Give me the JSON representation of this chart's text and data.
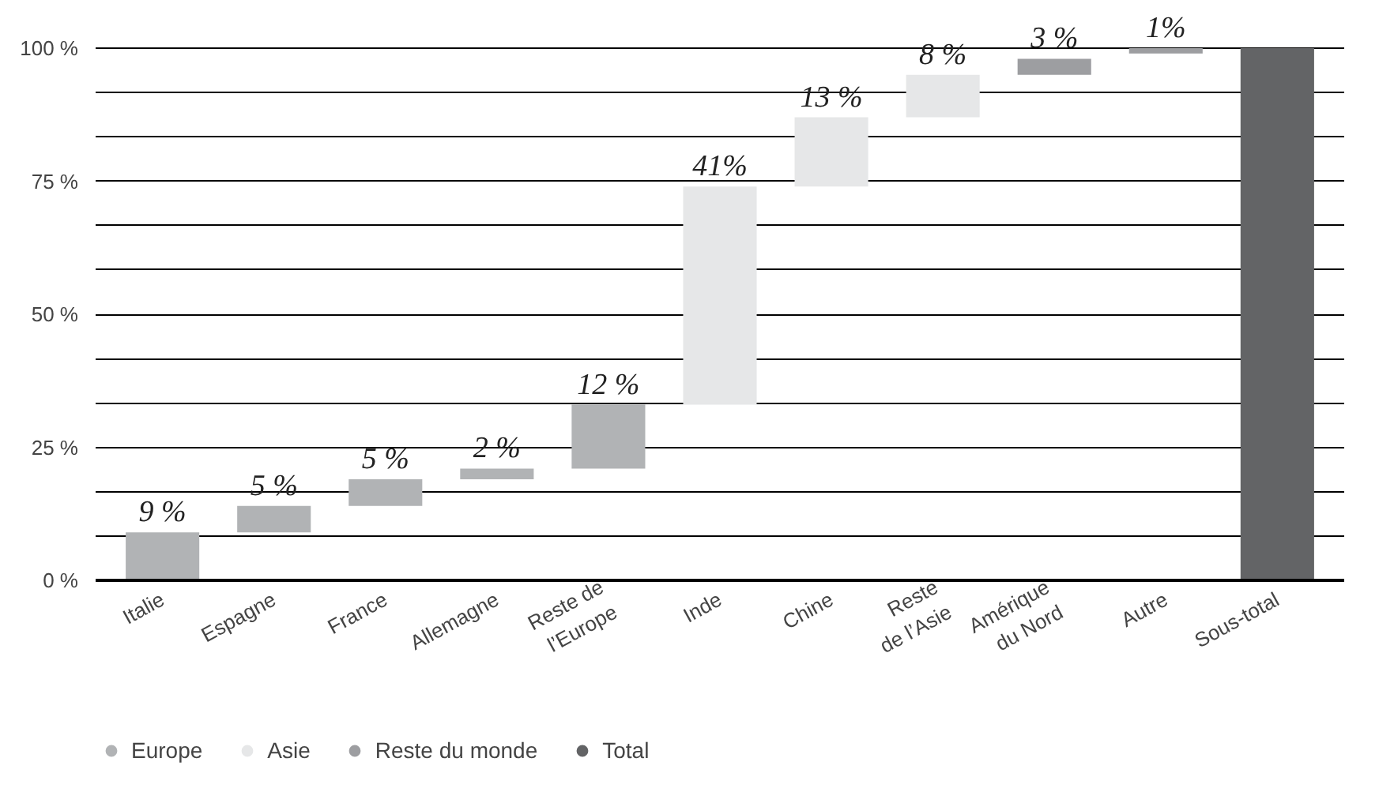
{
  "chart_data": {
    "type": "bar",
    "categories": [
      "Italie",
      "Espagne",
      "France",
      "Allemagne",
      "Reste de\nl’Europe",
      "Inde",
      "Chine",
      "Reste\nde l’Asie",
      "Amérique\ndu Nord",
      "Autre",
      "Sous-total"
    ],
    "series": [
      {
        "name": "Europe",
        "color": "#b1b3b5",
        "values": [
          9,
          5,
          5,
          2,
          12,
          null,
          null,
          null,
          null,
          null,
          null
        ],
        "base": [
          0,
          9,
          14,
          19,
          21,
          null,
          null,
          null,
          null,
          null,
          null
        ]
      },
      {
        "name": "Asie",
        "color": "#e6e7e8",
        "values": [
          null,
          null,
          null,
          null,
          null,
          41,
          13,
          8,
          null,
          null,
          null
        ],
        "base": [
          null,
          null,
          null,
          null,
          null,
          33,
          74,
          87,
          null,
          null,
          null
        ]
      },
      {
        "name": "Reste du monde",
        "color": "#9d9ea1",
        "values": [
          null,
          null,
          null,
          null,
          null,
          null,
          null,
          null,
          3,
          1,
          null
        ],
        "base": [
          null,
          null,
          null,
          null,
          null,
          null,
          null,
          null,
          95,
          99,
          null
        ]
      },
      {
        "name": "Total",
        "color": "#636466",
        "values": [
          null,
          null,
          null,
          null,
          null,
          null,
          null,
          null,
          null,
          null,
          100
        ],
        "base": [
          null,
          null,
          null,
          null,
          null,
          null,
          null,
          null,
          null,
          null,
          0
        ]
      }
    ],
    "value_labels": [
      "9 %",
      "5 %",
      "5 %",
      "2 %",
      "12 %",
      "41%",
      "13 %",
      "8 %",
      "3 %",
      "1%",
      null
    ],
    "ylim": [
      0,
      100
    ],
    "yticks": [
      {
        "value": 0,
        "label": "0 %"
      },
      {
        "value": 8.333,
        "label": null
      },
      {
        "value": 16.667,
        "label": null
      },
      {
        "value": 25,
        "label": "25 %"
      },
      {
        "value": 33.333,
        "label": null
      },
      {
        "value": 41.667,
        "label": null
      },
      {
        "value": 50,
        "label": "50 %"
      },
      {
        "value": 58.333,
        "label": null
      },
      {
        "value": 66.667,
        "label": null
      },
      {
        "value": 75,
        "label": "75 %"
      },
      {
        "value": 83.333,
        "label": null
      },
      {
        "value": 91.667,
        "label": null
      },
      {
        "value": 100,
        "label": "100 %"
      }
    ],
    "grid": "y",
    "legend": "bottom left"
  }
}
